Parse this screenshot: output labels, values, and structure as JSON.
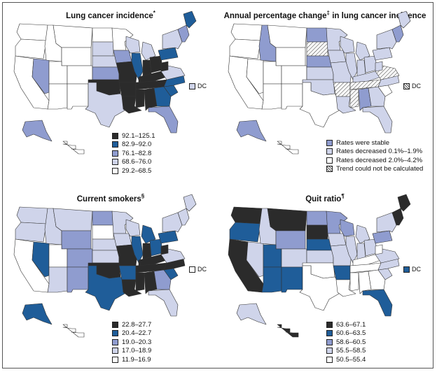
{
  "colors": {
    "q1": "#2b2b2b",
    "q2": "#1f5d99",
    "q3": "#8f9ccf",
    "q4": "#cfd4ea",
    "q5": "#ffffff",
    "hatch": "hatch",
    "border": "#333333"
  },
  "panels": [
    {
      "title": "Lung cancer incidence",
      "mark": "*",
      "legend": [
        {
          "label": "92.1–125.1",
          "key": "q1"
        },
        {
          "label": "82.9–92.0",
          "key": "q2"
        },
        {
          "label": "76.1–82.8",
          "key": "q3"
        },
        {
          "label": "68.6–76.0",
          "key": "q4"
        },
        {
          "label": "29.2–68.5",
          "key": "q5"
        }
      ],
      "dc": {
        "label": "DC",
        "key": "q4"
      },
      "states": {
        "WA": "q5",
        "OR": "q5",
        "CA": "q5",
        "NV": "q3",
        "ID": "q5",
        "MT": "q5",
        "WY": "q5",
        "UT": "q5",
        "AZ": "q5",
        "CO": "q5",
        "NM": "q5",
        "ND": "q5",
        "SD": "q4",
        "NE": "q4",
        "KS": "q3",
        "OK": "q1",
        "TX": "q4",
        "MN": "q5",
        "IA": "q3",
        "MO": "q1",
        "AR": "q1",
        "LA": "q1",
        "WI": "q4",
        "IL": "q2",
        "MI": "q4",
        "IN": "q1",
        "OH": "q1",
        "KY": "q1",
        "TN": "q1",
        "MS": "q1",
        "AL": "q1",
        "GA": "q2",
        "FL": "q3",
        "SC": "q2",
        "NC": "q2",
        "VA": "q4",
        "WV": "q1",
        "PA": "q2",
        "NY": "q4",
        "NE_US": "q3",
        "ME": "q2",
        "AK": "q3",
        "HI": "q5"
      }
    },
    {
      "title": "Annual percentage change",
      "mark": "‡",
      "title_tail": "in lung cancer incidence",
      "legend": [
        {
          "label": "Rates were stable",
          "key": "q3"
        },
        {
          "label": "Rates decreased 0.1%–1.9%",
          "key": "q4"
        },
        {
          "label": "Rates decreased 2.0%–4.2%",
          "key": "q5"
        },
        {
          "label": "Trend could not be calculated",
          "key": "hatch"
        }
      ],
      "dc": {
        "label": "DC",
        "key": "hatch"
      },
      "states": {
        "WA": "q5",
        "OR": "q5",
        "CA": "q5",
        "NV": "q5",
        "ID": "q3",
        "MT": "q5",
        "WY": "q5",
        "UT": "q5",
        "AZ": "q5",
        "CO": "q5",
        "NM": "q5",
        "ND": "q3",
        "SD": "hatch",
        "NE": "q3",
        "KS": "q4",
        "OK": "q4",
        "TX": "q5",
        "MN": "q4",
        "IA": "q4",
        "MO": "q4",
        "AR": "hatch",
        "LA": "q4",
        "WI": "q4",
        "IL": "q4",
        "MI": "q4",
        "IN": "q4",
        "OH": "q4",
        "KY": "q4",
        "TN": "hatch",
        "MS": "hatch",
        "AL": "q3",
        "GA": "q4",
        "FL": "q4",
        "SC": "q5",
        "NC": "q4",
        "VA": "hatch",
        "WV": "q4",
        "PA": "q4",
        "NY": "q4",
        "NE_US": "q3",
        "ME": "q4",
        "AK": "q3",
        "HI": "q5"
      }
    },
    {
      "title": "Current smokers",
      "mark": "§",
      "legend": [
        {
          "label": "22.8–27.7",
          "key": "q1"
        },
        {
          "label": "20.4–22.7",
          "key": "q2"
        },
        {
          "label": "19.0–20.3",
          "key": "q3"
        },
        {
          "label": "17.0–18.9",
          "key": "q4"
        },
        {
          "label": "11.9–16.9",
          "key": "q5"
        }
      ],
      "dc": {
        "label": "DC",
        "key": "q5"
      },
      "states": {
        "WA": "q4",
        "OR": "q4",
        "CA": "q5",
        "NV": "q2",
        "ID": "q4",
        "MT": "q4",
        "WY": "q3",
        "UT": "q5",
        "AZ": "q4",
        "CO": "q3",
        "NM": "q3",
        "ND": "q3",
        "SD": "q5",
        "NE": "q4",
        "KS": "q4",
        "OK": "q1",
        "TX": "q2",
        "MN": "q4",
        "IA": "q4",
        "MO": "q1",
        "AR": "q2",
        "LA": "q1",
        "WI": "q4",
        "IL": "q2",
        "MI": "q2",
        "IN": "q1",
        "OH": "q2",
        "KY": "q1",
        "TN": "q1",
        "MS": "q1",
        "AL": "q1",
        "GA": "q3",
        "FL": "q4",
        "SC": "q2",
        "NC": "q1",
        "VA": "q4",
        "WV": "q1",
        "PA": "q2",
        "NY": "q4",
        "NE_US": "q4",
        "ME": "q4",
        "AK": "q2",
        "HI": "q5"
      }
    },
    {
      "title": "Quit ratio",
      "mark": "¶",
      "legend": [
        {
          "label": "63.6–67.1",
          "key": "q1"
        },
        {
          "label": "60.6–63.5",
          "key": "q2"
        },
        {
          "label": "58.6–60.5",
          "key": "q3"
        },
        {
          "label": "55.5–58.5",
          "key": "q4"
        },
        {
          "label": "50.5–55.4",
          "key": "q5"
        }
      ],
      "dc": {
        "label": "DC",
        "key": "q2"
      },
      "states": {
        "WA": "q1",
        "OR": "q2",
        "CA": "q1",
        "NV": "q4",
        "ID": "q4",
        "MT": "q1",
        "WY": "q3",
        "UT": "q2",
        "AZ": "q2",
        "CO": "q4",
        "NM": "q2",
        "ND": "q3",
        "SD": "q1",
        "NE": "q2",
        "KS": "q4",
        "OK": "q5",
        "TX": "q5",
        "MN": "q3",
        "IA": "q4",
        "MO": "q4",
        "AR": "q2",
        "LA": "q5",
        "WI": "q3",
        "IL": "q4",
        "MI": "q4",
        "IN": "q4",
        "OH": "q4",
        "KY": "q5",
        "TN": "q5",
        "MS": "q5",
        "AL": "q5",
        "GA": "q5",
        "FL": "q2",
        "SC": "q4",
        "NC": "q4",
        "VA": "q4",
        "WV": "q5",
        "PA": "q3",
        "NY": "q4",
        "NE_US": "q1",
        "ME": "q1",
        "AK": "q4",
        "HI": "q1"
      }
    }
  ]
}
